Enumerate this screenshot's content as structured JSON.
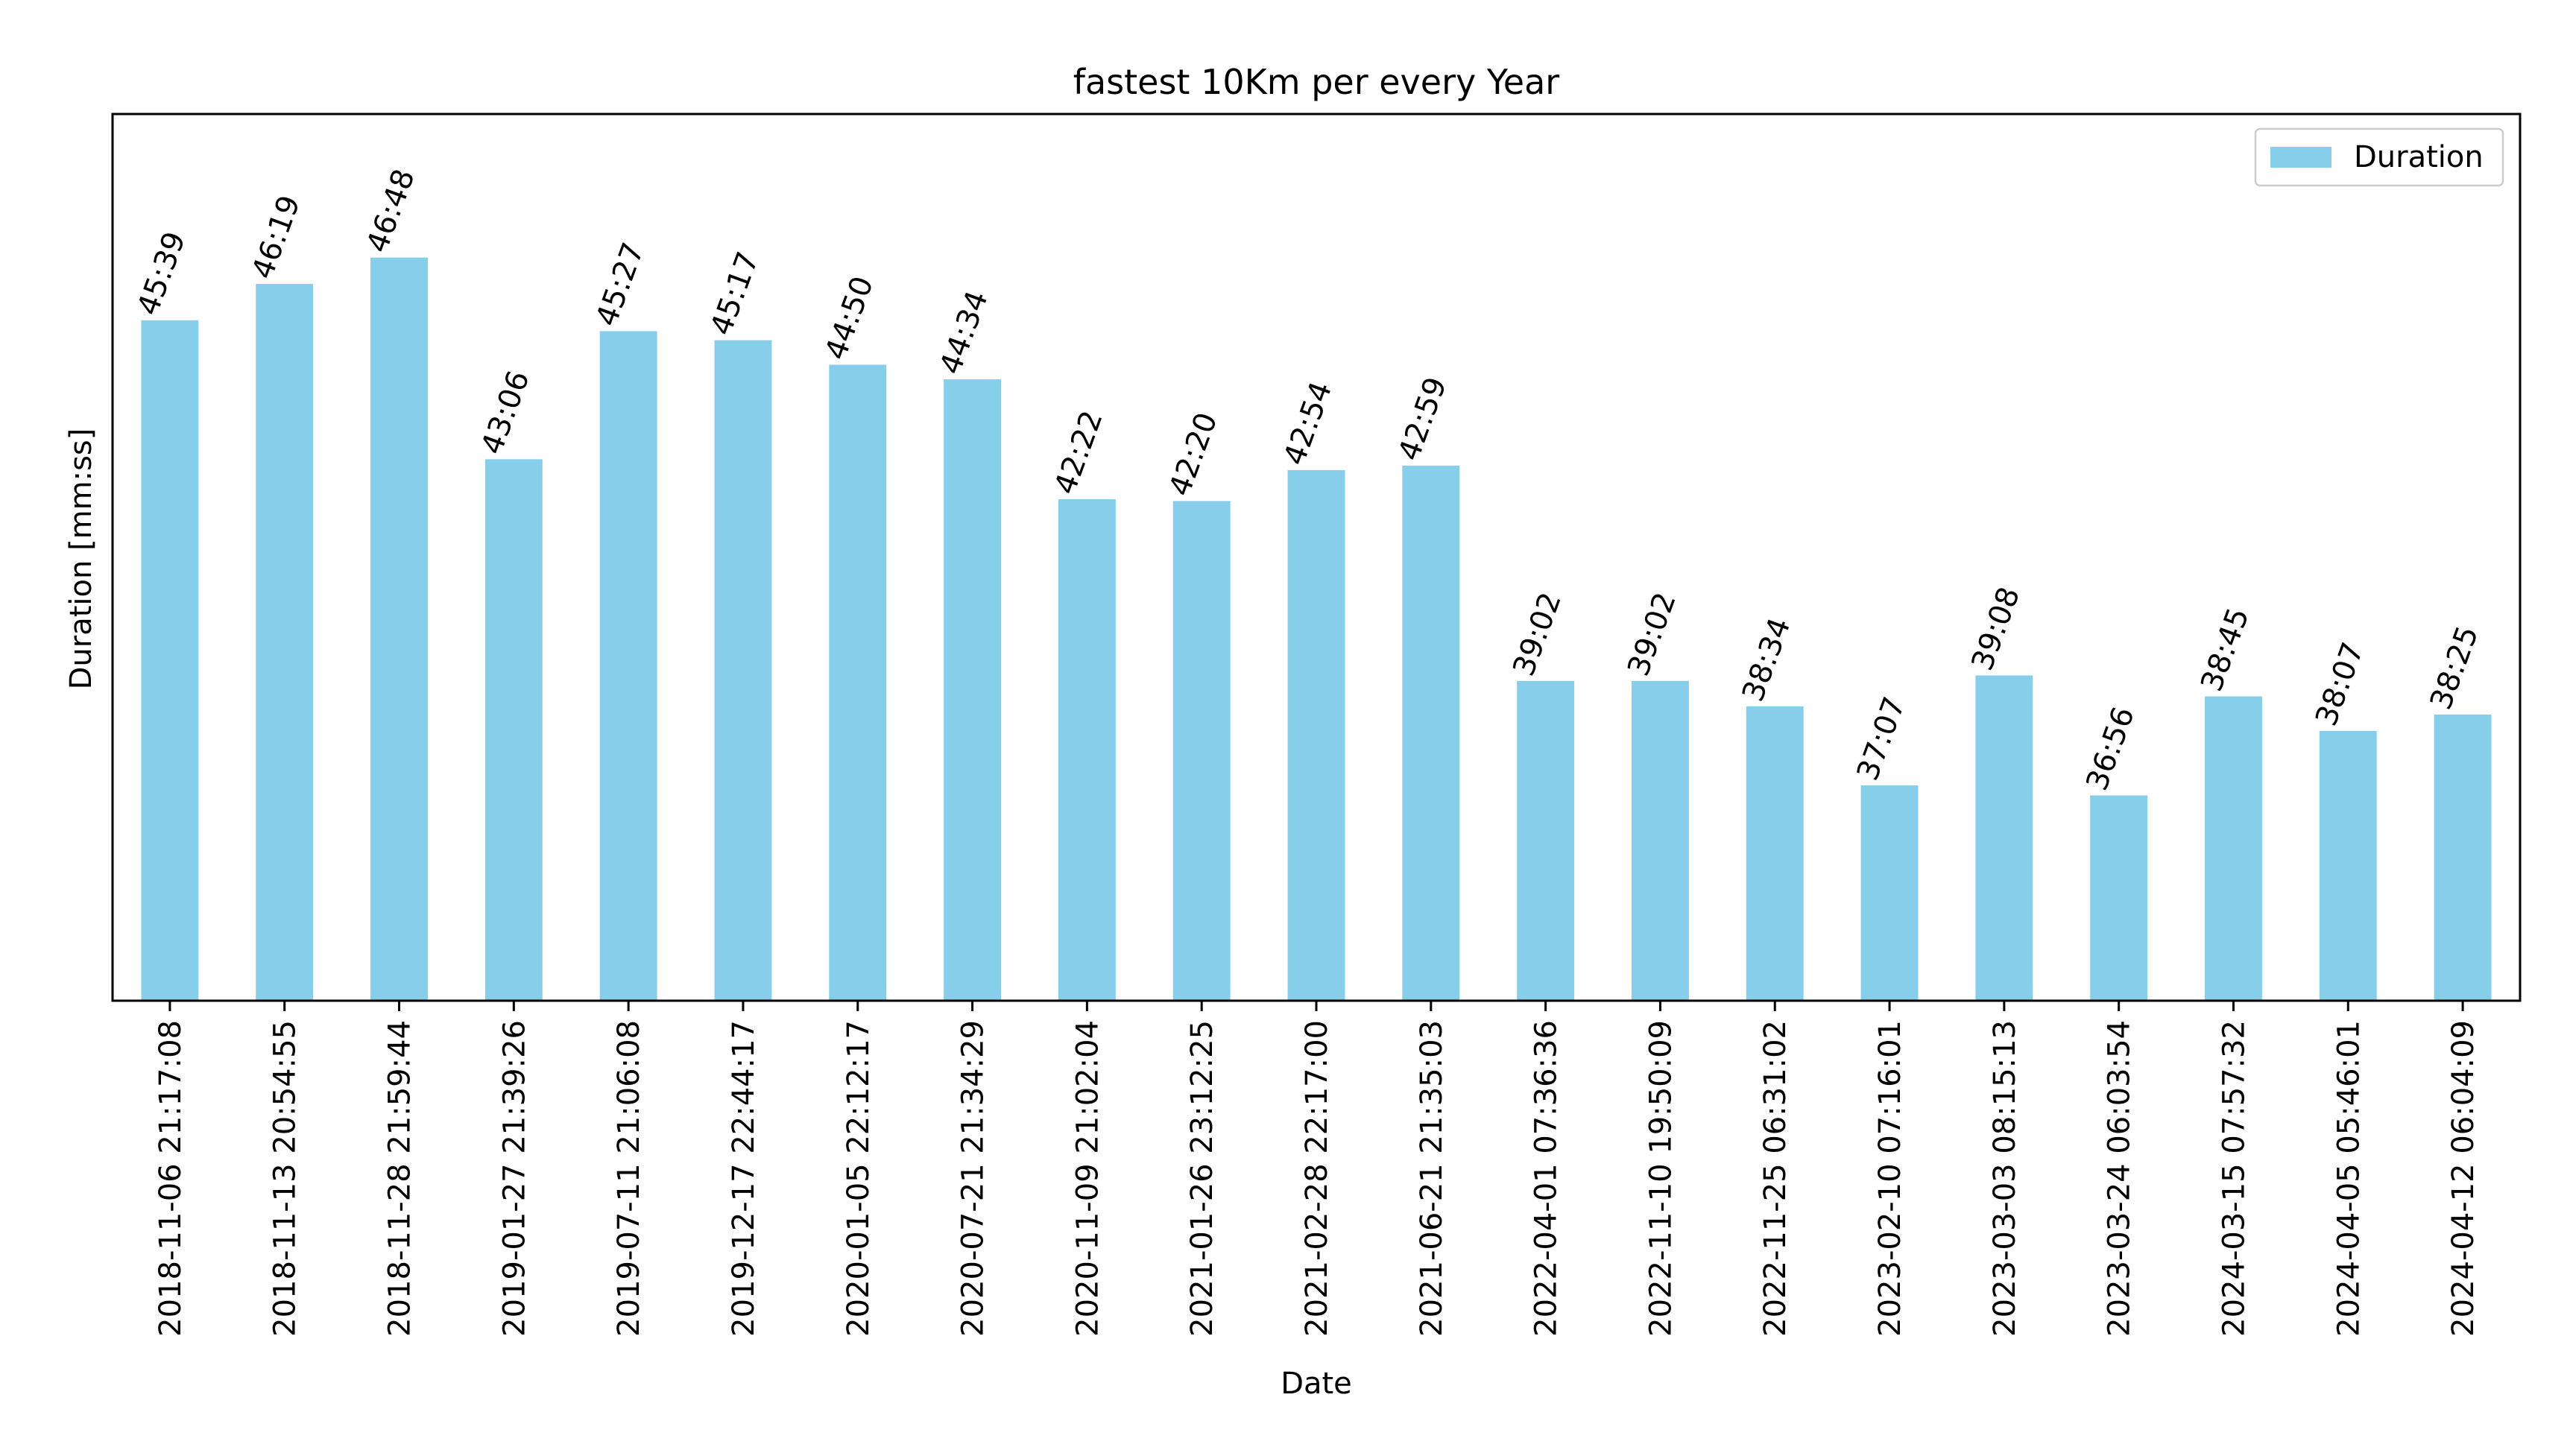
{
  "chart_data": {
    "type": "bar",
    "title": "fastest 10Km per every Year",
    "xlabel": "Date",
    "ylabel": "Duration [mm:ss]",
    "categories": [
      "2018-11-06 21:17:08",
      "2018-11-13 20:54:55",
      "2018-11-28 21:59:44",
      "2019-01-27 21:39:26",
      "2019-07-11 21:06:08",
      "2019-12-17 22:44:17",
      "2020-01-05 22:12:17",
      "2020-07-21 21:34:29",
      "2020-11-09 21:02:04",
      "2021-01-26 23:12:25",
      "2021-02-28 22:17:00",
      "2021-06-21 21:35:03",
      "2022-04-01 07:36:36",
      "2022-11-10 19:50:09",
      "2022-11-25 06:31:02",
      "2023-02-10 07:16:01",
      "2023-03-03 08:15:13",
      "2023-03-24 06:03:54",
      "2024-03-15 07:57:32",
      "2024-04-05 05:46:01",
      "2024-04-12 06:04:09"
    ],
    "data_labels": [
      "45:39",
      "46:19",
      "46:48",
      "43:06",
      "45:27",
      "45:17",
      "44:50",
      "44:34",
      "42:22",
      "42:20",
      "42:54",
      "42:59",
      "39:02",
      "39:02",
      "38:34",
      "37:07",
      "39:08",
      "36:56",
      "38:45",
      "38:07",
      "38:25"
    ],
    "series": [
      {
        "name": "Duration",
        "color": "#87ceeb",
        "values_seconds": [
          2739,
          2779,
          2808,
          2586,
          2727,
          2717,
          2690,
          2674,
          2542,
          2540,
          2574,
          2579,
          2342,
          2342,
          2314,
          2227,
          2348,
          2216,
          2325,
          2287,
          2305
        ]
      }
    ],
    "ylim_seconds": [
      1990,
      2966
    ],
    "y_ticks_visible": false,
    "grid": false,
    "legend": {
      "position": "top-right"
    }
  }
}
